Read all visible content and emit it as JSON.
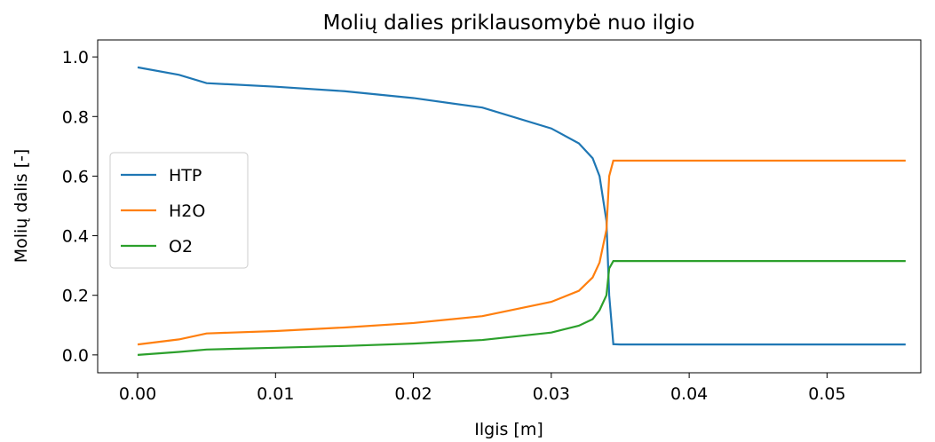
{
  "chart_data": {
    "type": "line",
    "title": "Molių dalies priklausomybė nuo ilgio",
    "x_label": "Ilgis [m]",
    "y_label": "Molių dalis [-]",
    "x": [
      0,
      0.003,
      0.005,
      0.01,
      0.015,
      0.02,
      0.025,
      0.03,
      0.032,
      0.033,
      0.0335,
      0.034,
      0.0342,
      0.0345,
      0.035,
      0.04,
      0.045,
      0.05,
      0.0557
    ],
    "series": [
      {
        "name": "HTP",
        "color": "#1f77b4",
        "values": [
          0.965,
          0.94,
          0.912,
          0.9,
          0.885,
          0.862,
          0.83,
          0.76,
          0.71,
          0.66,
          0.6,
          0.45,
          0.2,
          0.036,
          0.035,
          0.035,
          0.035,
          0.035,
          0.035
        ]
      },
      {
        "name": "H2O",
        "color": "#ff7f0e",
        "values": [
          0.035,
          0.052,
          0.072,
          0.08,
          0.092,
          0.107,
          0.13,
          0.178,
          0.215,
          0.26,
          0.31,
          0.42,
          0.6,
          0.652,
          0.652,
          0.652,
          0.652,
          0.652,
          0.652
        ]
      },
      {
        "name": "O2",
        "color": "#2ca02c",
        "values": [
          0,
          0.01,
          0.018,
          0.024,
          0.03,
          0.038,
          0.05,
          0.075,
          0.098,
          0.12,
          0.15,
          0.2,
          0.29,
          0.315,
          0.315,
          0.315,
          0.315,
          0.315,
          0.315
        ]
      }
    ],
    "xlim": [
      -0.0029,
      0.0568
    ],
    "ylim": [
      -0.06,
      1.057
    ],
    "xticks": [
      {
        "value": 0,
        "label": "0.00"
      },
      0.01,
      0.02,
      0.03,
      0.04,
      0.05
    ],
    "yticks": [
      {
        "value": 0,
        "label": "0.0"
      },
      0.2,
      0.4,
      0.6,
      0.8,
      {
        "value": 1,
        "label": "1.0"
      }
    ],
    "legend": "center left"
  }
}
